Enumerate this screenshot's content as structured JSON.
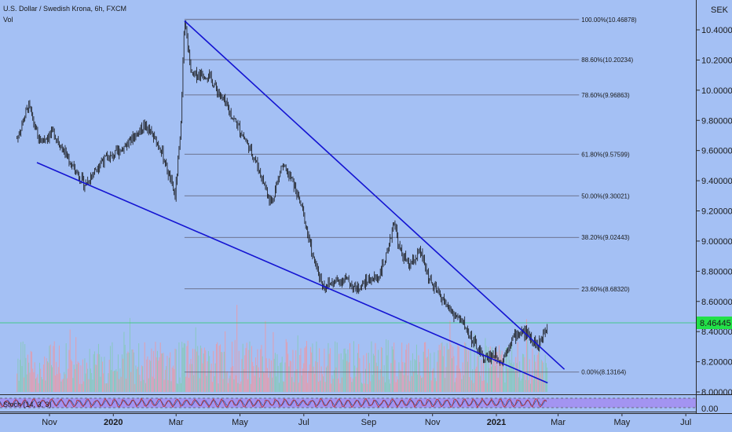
{
  "header": {
    "symbol_title": "U.S. Dollar / Swedish Krona, 6h, FXCM",
    "volume_label": "Vol"
  },
  "price_axis": {
    "unit": "SEK",
    "ticks": [
      "10.40000",
      "10.20000",
      "10.00000",
      "9.80000",
      "9.60000",
      "9.40000",
      "9.20000",
      "9.00000",
      "8.80000",
      "8.60000",
      "8.40000",
      "8.20000",
      "8.00000"
    ],
    "current_price_label": "8.46445"
  },
  "time_axis": {
    "labels": [
      "Nov",
      "2020",
      "Mar",
      "May",
      "Jul",
      "Sep",
      "Nov",
      "2021",
      "Mar",
      "May",
      "Jul"
    ]
  },
  "oscillator": {
    "label": "Stoch (14, 3, 3)",
    "ticks": [
      "0.00"
    ]
  },
  "fibonacci": {
    "levels": [
      "100.00%(10.46878)",
      "88.60%(10.20234)",
      "78.60%(9.96863)",
      "61.80%(9.57599)",
      "50.00%(9.30021)",
      "38.20%(9.02443)",
      "23.60%(8.68320)",
      "0.00%(8.13164)"
    ]
  },
  "colors": {
    "background": "#a4c0f4",
    "candles": "#111111",
    "trendlines": "#1414d2",
    "price_tag": "#22e048",
    "volume_up": "#86c9b8",
    "volume_down": "#e89aa8",
    "stoch_band": "#a38cf0",
    "stoch_k": "#c02a2a",
    "stoch_d": "#2a5a9a"
  },
  "chart_data": {
    "type": "line",
    "title": "U.S. Dollar / Swedish Krona, 6h, FXCM",
    "ylabel": "SEK",
    "ylim": [
      7.98,
      10.49
    ],
    "x_labels": [
      "Nov",
      "2020",
      "Mar",
      "May",
      "Jul",
      "Sep",
      "Nov",
      "2021",
      "Mar",
      "May",
      "Jul"
    ],
    "series": [
      {
        "name": "U.S. Dollar / Swedish Krona",
        "x": [
          "2019-10-01",
          "2019-10-12",
          "2019-10-22",
          "2019-11-05",
          "2019-11-20",
          "2019-12-05",
          "2019-12-20",
          "2019-12-31",
          "2020-01-15",
          "2020-01-31",
          "2020-02-15",
          "2020-02-29",
          "2020-03-05",
          "2020-03-09",
          "2020-03-12",
          "2020-03-16",
          "2020-03-23",
          "2020-04-01",
          "2020-04-15",
          "2020-04-30",
          "2020-05-15",
          "2020-05-31",
          "2020-06-10",
          "2020-06-20",
          "2020-06-30",
          "2020-07-10",
          "2020-07-20",
          "2020-07-31",
          "2020-08-10",
          "2020-08-20",
          "2020-08-31",
          "2020-09-10",
          "2020-09-20",
          "2020-09-25",
          "2020-09-30",
          "2020-10-10",
          "2020-10-20",
          "2020-10-31",
          "2020-11-10",
          "2020-11-20",
          "2020-11-30",
          "2020-12-10",
          "2020-12-20",
          "2020-12-31",
          "2021-01-06",
          "2021-01-15",
          "2021-01-25",
          "2021-02-01",
          "2021-02-10",
          "2021-02-19"
        ],
        "values": [
          9.68,
          9.9,
          9.66,
          9.72,
          9.53,
          9.37,
          9.53,
          9.56,
          9.65,
          9.77,
          9.62,
          9.3,
          9.69,
          10.46,
          10.3,
          10.09,
          10.11,
          10.1,
          9.93,
          9.75,
          9.55,
          9.25,
          9.5,
          9.4,
          9.2,
          8.88,
          8.7,
          8.73,
          8.75,
          8.68,
          8.74,
          8.76,
          8.93,
          9.15,
          8.95,
          8.83,
          8.93,
          8.71,
          8.62,
          8.52,
          8.46,
          8.33,
          8.22,
          8.25,
          8.2,
          8.35,
          8.4,
          8.38,
          8.3,
          8.46445
        ]
      }
    ],
    "fibonacci_levels": [
      {
        "ratio": 1.0,
        "price": 10.46878
      },
      {
        "ratio": 0.886,
        "price": 10.20234
      },
      {
        "ratio": 0.786,
        "price": 9.96863
      },
      {
        "ratio": 0.618,
        "price": 9.57599
      },
      {
        "ratio": 0.5,
        "price": 9.30021
      },
      {
        "ratio": 0.382,
        "price": 9.02443
      },
      {
        "ratio": 0.236,
        "price": 8.6832
      },
      {
        "ratio": 0.0,
        "price": 8.13164
      }
    ],
    "grid": false
  }
}
